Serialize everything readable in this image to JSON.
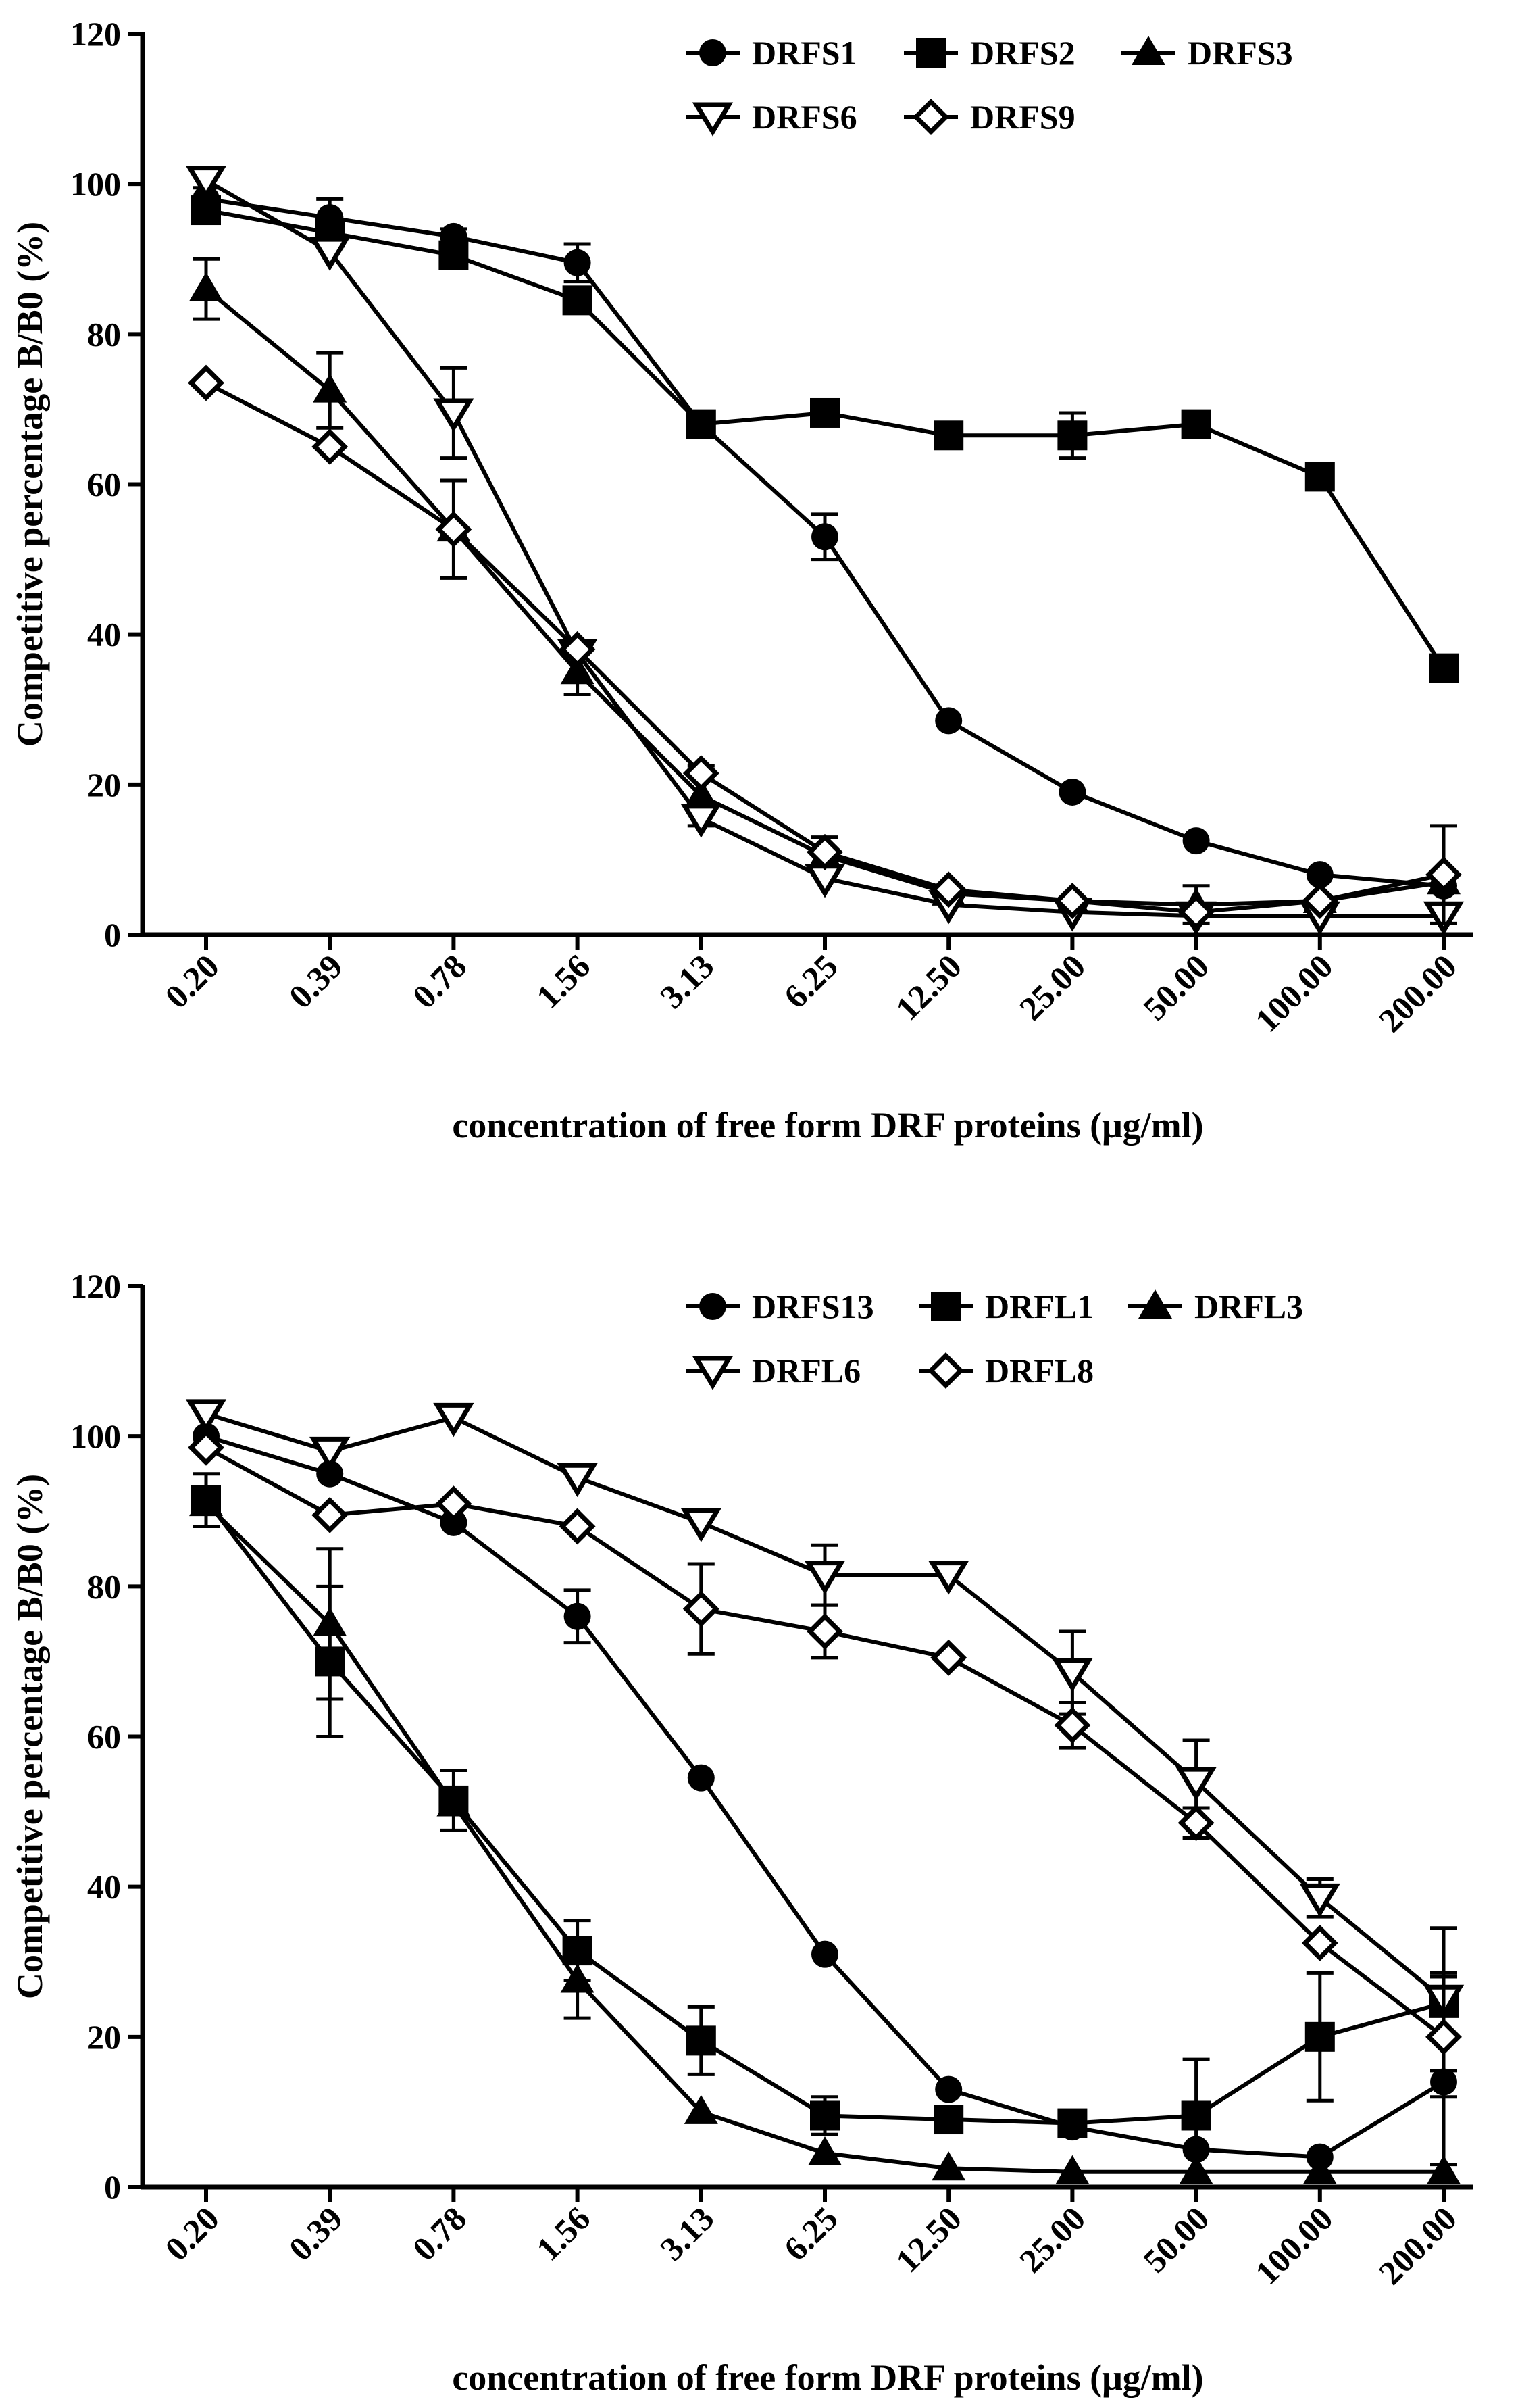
{
  "chart_data": [
    {
      "type": "line",
      "title": "",
      "xlabel": "concentration of free form DRF proteins (μg/ml)",
      "ylabel": "Competitive percentage B/B0 (%)",
      "ylim": [
        0,
        120
      ],
      "yticks": [
        "0",
        "20",
        "40",
        "60",
        "80",
        "100",
        "120"
      ],
      "categories": [
        "0.20",
        "0.39",
        "0.78",
        "1.56",
        "3.13",
        "6.25",
        "12.50",
        "25.00",
        "50.00",
        "100.00",
        "200.00"
      ],
      "legend": "top-right",
      "series": [
        {
          "name": "DRFS1",
          "marker": "circle",
          "values": [
            98,
            95.5,
            93,
            89.5,
            68,
            53,
            28.5,
            19,
            12.5,
            8,
            6.5
          ],
          "errors": [
            0,
            2.5,
            1,
            2.5,
            0,
            3,
            0,
            0,
            0,
            0,
            0
          ]
        },
        {
          "name": "DRFS2",
          "marker": "square",
          "values": [
            96.5,
            93.5,
            90.5,
            84.5,
            68,
            69.5,
            66.5,
            66.5,
            68,
            61,
            35.5
          ],
          "errors": [
            0,
            2,
            0,
            0,
            0,
            0,
            0,
            3,
            0,
            0,
            0
          ]
        },
        {
          "name": "DRFS3",
          "marker": "triangle-up",
          "values": [
            86,
            72.5,
            54,
            35,
            18.5,
            10.5,
            5.5,
            4.5,
            4,
            4.5,
            7
          ],
          "errors": [
            4,
            5,
            6.5,
            3,
            4,
            2.5,
            0,
            0,
            2.5,
            0,
            0
          ]
        },
        {
          "name": "DRFS6",
          "marker": "triangle-down-open",
          "values": [
            100.5,
            91,
            69.5,
            37.5,
            15.5,
            7.5,
            4,
            3,
            2.5,
            2.5,
            2.5
          ],
          "errors": [
            1,
            0,
            6,
            0,
            0,
            0,
            0,
            0,
            0,
            0,
            0
          ]
        },
        {
          "name": "DRFS9",
          "marker": "diamond-open",
          "values": [
            73.5,
            65,
            54,
            38,
            21.5,
            11,
            6,
            4.5,
            3,
            4.5,
            8
          ],
          "errors": [
            0,
            0,
            0,
            0,
            0,
            0,
            0,
            0,
            0,
            0,
            6.5
          ]
        }
      ]
    },
    {
      "type": "line",
      "title": "",
      "xlabel": "concentration of free form DRF proteins (μg/ml)",
      "ylabel": "Competitive percentage B/B0 (%)",
      "ylim": [
        0,
        120
      ],
      "yticks": [
        "0",
        "20",
        "40",
        "60",
        "80",
        "100",
        "120"
      ],
      "categories": [
        "0.20",
        "0.39",
        "0.78",
        "1.56",
        "3.13",
        "6.25",
        "12.50",
        "25.00",
        "50.00",
        "100.00",
        "200.00"
      ],
      "legend": "top-right",
      "series": [
        {
          "name": "DRFS13",
          "marker": "circle",
          "values": [
            100,
            95,
            88.5,
            76,
            54.5,
            31,
            13,
            8,
            5,
            4,
            14
          ],
          "errors": [
            0,
            0,
            0,
            3.5,
            0,
            0,
            0,
            0,
            0,
            0,
            11
          ]
        },
        {
          "name": "DRFL1",
          "marker": "square",
          "values": [
            91.5,
            70,
            51.5,
            31.5,
            19.5,
            9.5,
            9,
            8.5,
            9.5,
            20,
            24.5
          ],
          "errors": [
            3.5,
            10,
            4,
            4,
            4.5,
            2.5,
            0,
            0,
            7.5,
            8.5,
            4
          ]
        },
        {
          "name": "DRFL3",
          "marker": "triangle-up",
          "values": [
            91,
            75,
            51,
            27.5,
            10,
            4.5,
            2.5,
            2,
            2,
            2,
            2
          ],
          "errors": [
            0,
            10,
            0,
            5,
            0,
            0,
            0,
            0,
            0,
            0,
            0
          ]
        },
        {
          "name": "DRFL6",
          "marker": "triangle-down-open",
          "values": [
            103,
            98,
            102.5,
            94.5,
            88.5,
            81.5,
            81.5,
            68.5,
            54,
            38.5,
            25
          ],
          "errors": [
            0,
            0,
            0,
            0,
            0,
            4,
            0,
            5.5,
            5.5,
            2.5,
            9.5
          ]
        },
        {
          "name": "DRFL8",
          "marker": "diamond-open",
          "values": [
            98.5,
            89.5,
            91,
            88,
            77,
            74,
            70.5,
            61.5,
            48.5,
            32.5,
            20
          ],
          "errors": [
            0,
            0,
            0,
            0,
            6,
            3.5,
            0,
            3,
            2,
            0,
            8
          ]
        }
      ]
    }
  ]
}
